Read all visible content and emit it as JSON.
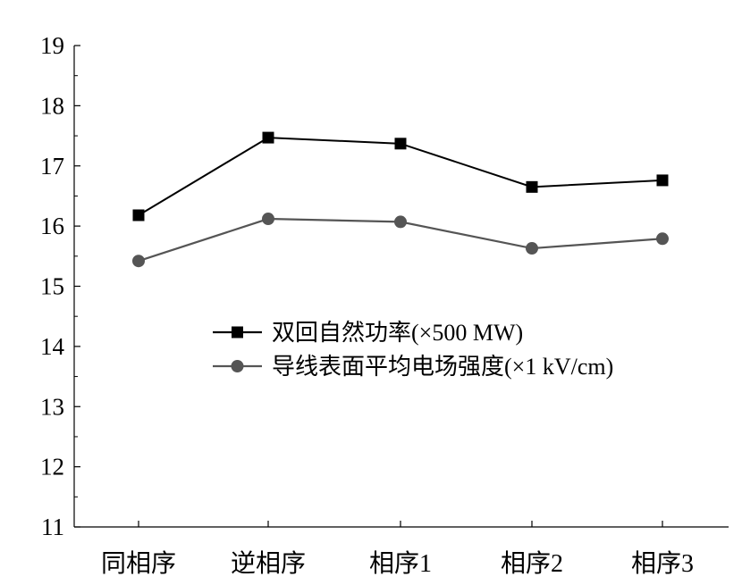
{
  "chart_data": {
    "type": "line",
    "categories": [
      "同相序",
      "逆相序",
      "相序1",
      "相序2",
      "相序3"
    ],
    "ylim": [
      11,
      19
    ],
    "yticks": [
      11,
      12,
      13,
      14,
      15,
      16,
      17,
      18,
      19
    ],
    "grid": false,
    "legend_position": "center",
    "series": [
      {
        "name": "双回自然功率(×500 MW)",
        "values": [
          16.18,
          17.47,
          17.37,
          16.65,
          16.76
        ],
        "color": "#000000",
        "marker": "square"
      },
      {
        "name": "导线表面平均电场强度(×1 kV/cm)",
        "values": [
          15.42,
          16.12,
          16.07,
          15.63,
          15.79
        ],
        "color": "#555555",
        "marker": "circle"
      }
    ]
  }
}
